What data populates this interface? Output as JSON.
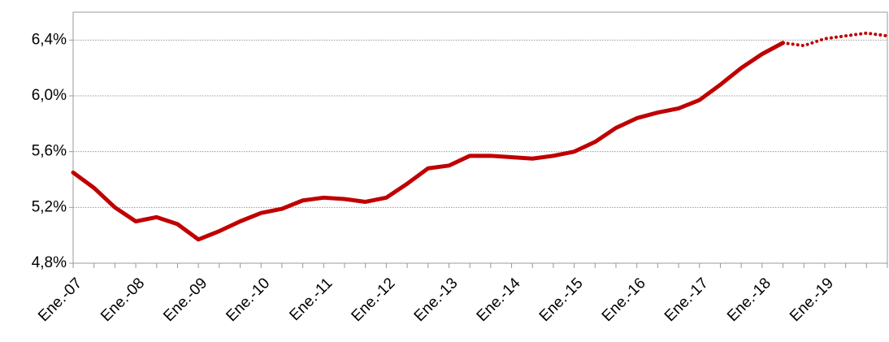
{
  "chart_data": {
    "type": "line",
    "categories": [
      "Ene.-07",
      null,
      null,
      "Ene.-08",
      null,
      null,
      "Ene.-09",
      null,
      null,
      "Ene.-10",
      null,
      null,
      "Ene.-11",
      null,
      null,
      "Ene.-12",
      null,
      null,
      "Ene.-13",
      null,
      null,
      "Ene.-14",
      null,
      null,
      "Ene.-15",
      null,
      null,
      "Ene.-16",
      null,
      null,
      "Ene.-17",
      null,
      null,
      "Ene.-18",
      null,
      null,
      "Ene.-19",
      null,
      null,
      null
    ],
    "series": [
      {
        "color": "#c00000",
        "dashed": false,
        "values": [
          5.45,
          5.34,
          5.2,
          5.1,
          5.13,
          5.08,
          4.97,
          5.03,
          5.1,
          5.16,
          5.19,
          5.25,
          5.27,
          5.26,
          5.24,
          5.27,
          5.37,
          5.48,
          5.5,
          5.57,
          5.57,
          5.56,
          5.55,
          5.57,
          5.6,
          5.67,
          5.77,
          5.84,
          5.88,
          5.91,
          5.97,
          6.08,
          6.2,
          6.3,
          6.38,
          null,
          null,
          null,
          null,
          null
        ]
      },
      {
        "color": "#c00000",
        "dashed": true,
        "values": [
          null,
          null,
          null,
          null,
          null,
          null,
          null,
          null,
          null,
          null,
          null,
          null,
          null,
          null,
          null,
          null,
          null,
          null,
          null,
          null,
          null,
          null,
          null,
          null,
          null,
          null,
          null,
          null,
          null,
          null,
          null,
          null,
          null,
          null,
          6.38,
          6.36,
          6.41,
          6.43,
          6.45,
          6.43
        ]
      }
    ],
    "ylim": [
      4.8,
      6.6
    ],
    "yticks": [
      {
        "value": 4.8,
        "label": "4,8%"
      },
      {
        "value": 5.2,
        "label": "5,2%"
      },
      {
        "value": 5.6,
        "label": "5,6%"
      },
      {
        "value": 6.0,
        "label": "6,0%"
      },
      {
        "value": 6.4,
        "label": "6,4%"
      }
    ],
    "grid": true
  }
}
